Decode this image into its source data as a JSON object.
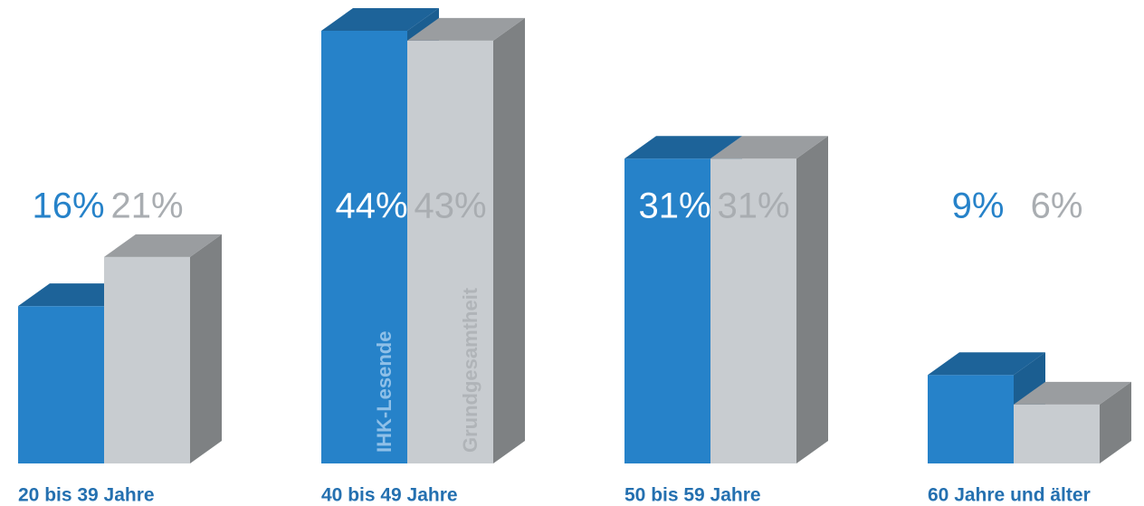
{
  "chart_data": {
    "type": "bar3d",
    "categories": [
      "20 bis 39 Jahre",
      "40 bis 49 Jahre",
      "50 bis 59 Jahre",
      "60 Jahre und älter"
    ],
    "series": [
      {
        "name": "IHK-Lesende",
        "color": "#2682c9",
        "values": [
          16,
          44,
          31,
          9
        ],
        "value_labels": [
          "16%",
          "44%",
          "31%",
          "9%"
        ]
      },
      {
        "name": "Grundgesamtheit",
        "color": "#c8ccd0",
        "values": [
          21,
          43,
          31,
          6
        ],
        "value_labels": [
          "21%",
          "43%",
          "31%",
          "6%"
        ]
      }
    ]
  }
}
